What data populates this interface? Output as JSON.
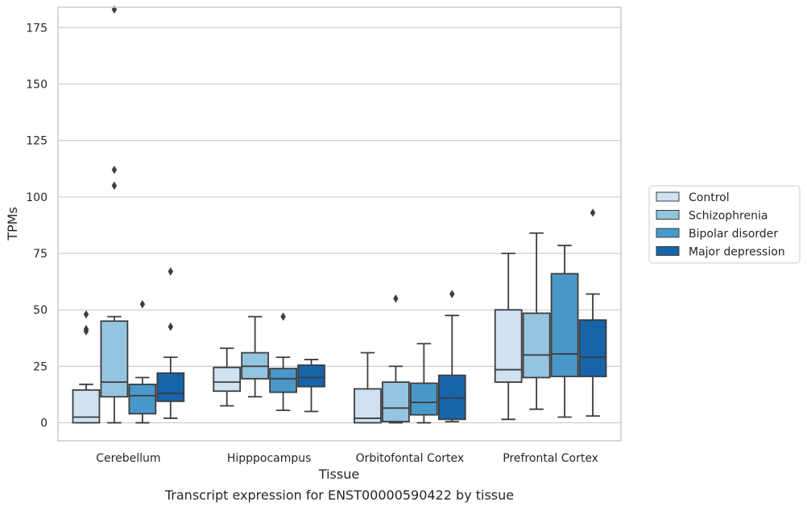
{
  "caption": "Transcript expression for ENST00000590422 by tissue",
  "chart_data": {
    "type": "box",
    "xlabel": "Tissue",
    "ylabel": "TPMs",
    "ylim": [
      -8,
      184
    ],
    "yticks": [
      0,
      25,
      50,
      75,
      100,
      125,
      150,
      175
    ],
    "grid": "horizontal",
    "legend_position": "outside-right",
    "categories": [
      "Cerebellum",
      "Hipppocampus",
      "Orbitofontal Cortex",
      "Prefrontal Cortex"
    ],
    "series": [
      {
        "name": "Control",
        "color": "#d0e1f2",
        "boxes": [
          {
            "whisker_low": 0,
            "q1": 0,
            "median": 2.5,
            "q3": 14.5,
            "whisker_high": 17,
            "outliers": [
              40.5,
              41.5,
              48
            ]
          },
          {
            "whisker_low": 7.5,
            "q1": 14,
            "median": 18,
            "q3": 24.5,
            "whisker_high": 33,
            "outliers": []
          },
          {
            "whisker_low": 0,
            "q1": 0,
            "median": 2,
            "q3": 15,
            "whisker_high": 31,
            "outliers": []
          },
          {
            "whisker_low": 1.5,
            "q1": 18,
            "median": 23.5,
            "q3": 50,
            "whisker_high": 75,
            "outliers": []
          }
        ]
      },
      {
        "name": "Schizophrenia",
        "color": "#94c4df",
        "boxes": [
          {
            "whisker_low": 0,
            "q1": 11.5,
            "median": 18,
            "q3": 45,
            "whisker_high": 47,
            "outliers": [
              105,
              112,
              183
            ]
          },
          {
            "whisker_low": 11.5,
            "q1": 19.5,
            "median": 25,
            "q3": 31,
            "whisker_high": 47,
            "outliers": []
          },
          {
            "whisker_low": 0,
            "q1": 0.5,
            "median": 6.5,
            "q3": 18,
            "whisker_high": 25,
            "outliers": [
              55
            ]
          },
          {
            "whisker_low": 6,
            "q1": 20,
            "median": 30,
            "q3": 48.5,
            "whisker_high": 84,
            "outliers": []
          }
        ]
      },
      {
        "name": "Bipolar disorder",
        "color": "#4a98c9",
        "boxes": [
          {
            "whisker_low": 0,
            "q1": 4,
            "median": 12,
            "q3": 17,
            "whisker_high": 20,
            "outliers": [
              52.5
            ]
          },
          {
            "whisker_low": 5.5,
            "q1": 13.5,
            "median": 19.5,
            "q3": 24,
            "whisker_high": 29,
            "outliers": [
              47
            ]
          },
          {
            "whisker_low": 0,
            "q1": 3.5,
            "median": 9,
            "q3": 17.5,
            "whisker_high": 35,
            "outliers": []
          },
          {
            "whisker_low": 2.5,
            "q1": 20.5,
            "median": 30.5,
            "q3": 66,
            "whisker_high": 78.5,
            "outliers": []
          }
        ]
      },
      {
        "name": "Major depression",
        "color": "#1764ab",
        "boxes": [
          {
            "whisker_low": 2,
            "q1": 9.5,
            "median": 13,
            "q3": 22,
            "whisker_high": 29,
            "outliers": [
              42.5,
              67
            ]
          },
          {
            "whisker_low": 5,
            "q1": 16,
            "median": 20,
            "q3": 25.5,
            "whisker_high": 28,
            "outliers": []
          },
          {
            "whisker_low": 0.5,
            "q1": 1.5,
            "median": 11,
            "q3": 21,
            "whisker_high": 47.5,
            "outliers": [
              57
            ]
          },
          {
            "whisker_low": 3,
            "q1": 20.5,
            "median": 29,
            "q3": 45.5,
            "whisker_high": 57,
            "outliers": [
              93
            ]
          }
        ]
      }
    ]
  }
}
